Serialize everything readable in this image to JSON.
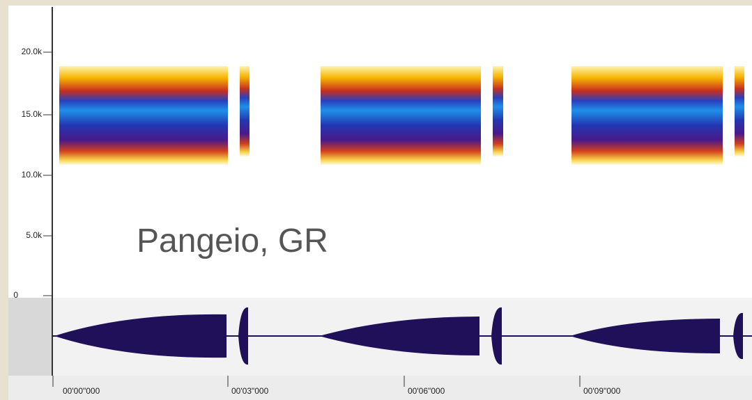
{
  "spectrogram": {
    "y_labels": [
      "20.0k",
      "15.0k",
      "10.0k",
      "5.0k",
      "0"
    ],
    "annotation": "Pangeio, GR"
  },
  "timeline": {
    "labels": [
      "00'00\"000",
      "00'03\"000",
      "00'06\"000",
      "00'09\"000"
    ]
  }
}
